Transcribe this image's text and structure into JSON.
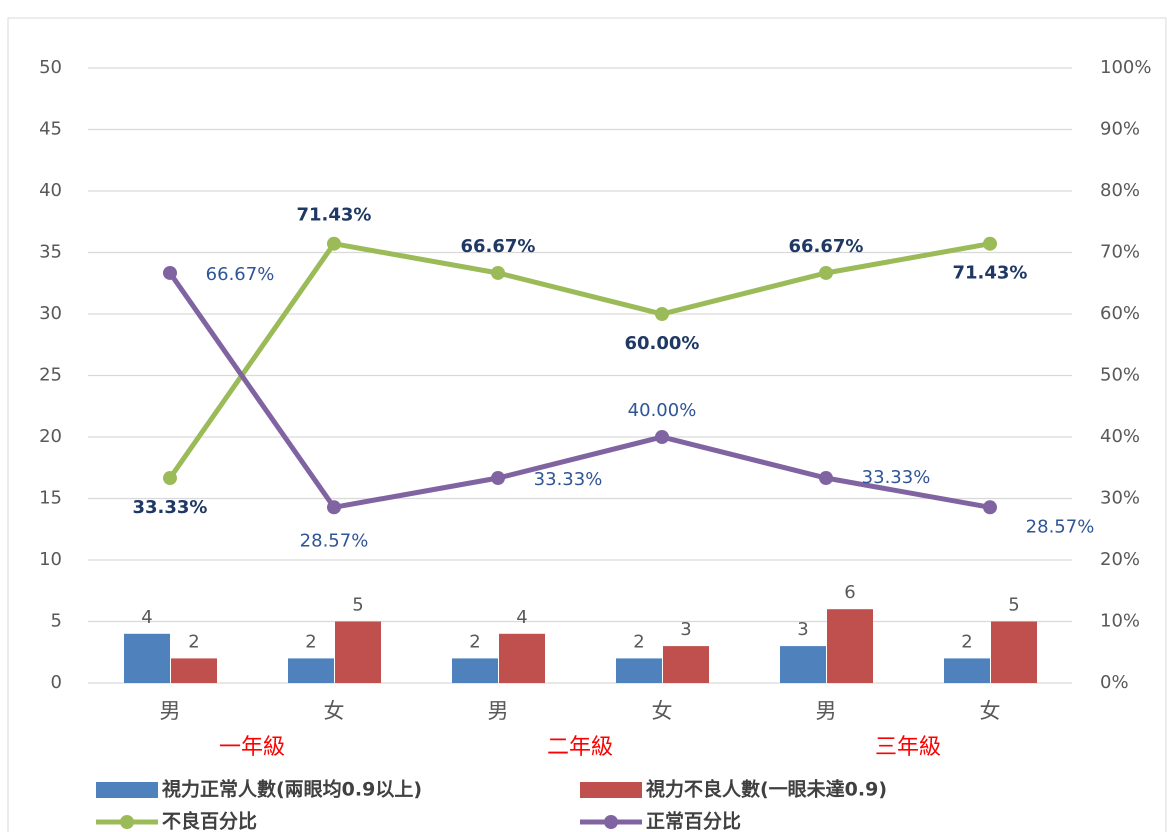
{
  "chart_data": {
    "type": "bar-line",
    "categories": [
      "男",
      "女",
      "男",
      "女",
      "男",
      "女"
    ],
    "groups": [
      "一年級",
      "二年級",
      "三年級"
    ],
    "series": [
      {
        "name": "視力正常人數(兩眼均0.9以上)",
        "type": "bar",
        "color": "#4f81bd",
        "values": [
          4,
          2,
          2,
          2,
          3,
          2
        ]
      },
      {
        "name": "視力不良人數(一眼未達0.9)",
        "type": "bar",
        "color": "#c0504d",
        "values": [
          2,
          5,
          4,
          3,
          6,
          5
        ]
      },
      {
        "name": "不良百分比",
        "type": "line",
        "axis": "y2",
        "color": "#9bbb59",
        "values": [
          33.33,
          71.43,
          66.67,
          60.0,
          66.67,
          71.43
        ],
        "value_labels": [
          "33.33%",
          "71.43%",
          "66.67%",
          "60.00%",
          "66.67%",
          "71.43%"
        ]
      },
      {
        "name": "正常百分比",
        "type": "line",
        "axis": "y2",
        "color": "#8064a2",
        "values": [
          66.67,
          28.57,
          33.33,
          40.0,
          33.33,
          28.57
        ],
        "value_labels": [
          "66.67%",
          "28.57%",
          "33.33%",
          "40.00%",
          "33.33%",
          "28.57%"
        ]
      }
    ],
    "ylim": [
      0,
      50
    ],
    "yticks": [
      0,
      5,
      10,
      15,
      20,
      25,
      30,
      35,
      40,
      45,
      50
    ],
    "y2lim": [
      0,
      100
    ],
    "y2ticks": [
      {
        "value": 0,
        "label": "0%"
      },
      {
        "value": 10,
        "label": "10%"
      },
      {
        "value": 20,
        "label": "20%"
      },
      {
        "value": 30,
        "label": "30%"
      },
      {
        "value": 40,
        "label": "40%"
      },
      {
        "value": 50,
        "label": "50%"
      },
      {
        "value": 60,
        "label": "60%"
      },
      {
        "value": 70,
        "label": "70%"
      },
      {
        "value": 80,
        "label": "80%"
      },
      {
        "value": 90,
        "label": "90%"
      },
      {
        "value": 100,
        "label": "100%"
      }
    ],
    "grid": true
  }
}
